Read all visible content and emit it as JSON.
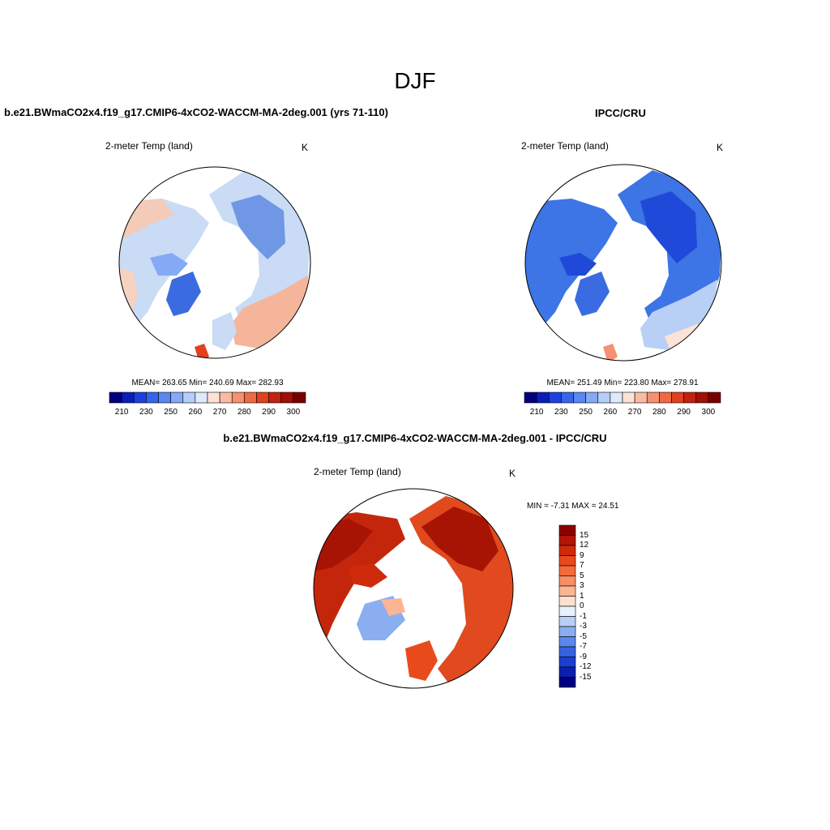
{
  "figure": {
    "title": "DJF"
  },
  "panels": [
    {
      "id": "model",
      "title": "b.e21.BWmaCO2x4.f19_g17.CMIP6-4xCO2-WACCM-MA-2deg.001 (yrs 71-110)",
      "variable": "2-meter Temp (land)",
      "units": "K",
      "stats": "MEAN= 263.65  Min= 240.69  Max= 282.93"
    },
    {
      "id": "obs",
      "title": "IPCC/CRU",
      "variable": "2-meter Temp (land)",
      "units": "K",
      "stats": "MEAN= 251.49  Min= 223.80  Max= 278.91"
    },
    {
      "id": "diff",
      "title": "b.e21.BWmaCO2x4.f19_g17.CMIP6-4xCO2-WACCM-MA-2deg.001 - IPCC/CRU",
      "variable": "2-meter Temp (land)",
      "units": "K",
      "stats": "MIN =  -7.31 MAX =  24.51"
    }
  ],
  "colorbars": {
    "absolute": {
      "tick_labels": [
        "210",
        "230",
        "250",
        "260",
        "270",
        "280",
        "290",
        "300"
      ],
      "colors": [
        "#00007f",
        "#0a1fb8",
        "#1e40e0",
        "#3565ea",
        "#5b88f0",
        "#86a9f5",
        "#b5cdf9",
        "#deeafc",
        "#fde2d6",
        "#f8bba3",
        "#f59070",
        "#ef6a43",
        "#e2401e",
        "#c42010",
        "#a01004",
        "#7a0000"
      ]
    },
    "difference": {
      "tick_labels": [
        "15",
        "12",
        "9",
        "7",
        "5",
        "3",
        "1",
        "0",
        "-1",
        "-3",
        "-5",
        "-7",
        "-9",
        "-12",
        "-15"
      ],
      "colors": [
        "#8c0000",
        "#b01506",
        "#cf2a0c",
        "#e94a1c",
        "#f56a3a",
        "#f88e62",
        "#fbb592",
        "#fde0d0",
        "#e8f0fb",
        "#b9cff5",
        "#8aaef0",
        "#5b88ea",
        "#3462e0",
        "#1a3fd0",
        "#0b1fb0",
        "#00007f"
      ]
    }
  },
  "map_colors": {
    "coastline": "#000000",
    "model": {
      "continent": "#c9dbf5",
      "siberia": "#6f97e5",
      "greenland": "#3b6be0",
      "pacific_side": "#f3cbb8",
      "europe": "#f4b59b"
    },
    "obs": {
      "continent": "#3d74e6",
      "siberia": "#1f49d8",
      "greenland": "#3b6be0",
      "europe": "#b8d0f5"
    },
    "diff": {
      "land": "#e04a1e",
      "hot": "#b81a08",
      "greenland": "#8aaef0"
    }
  }
}
